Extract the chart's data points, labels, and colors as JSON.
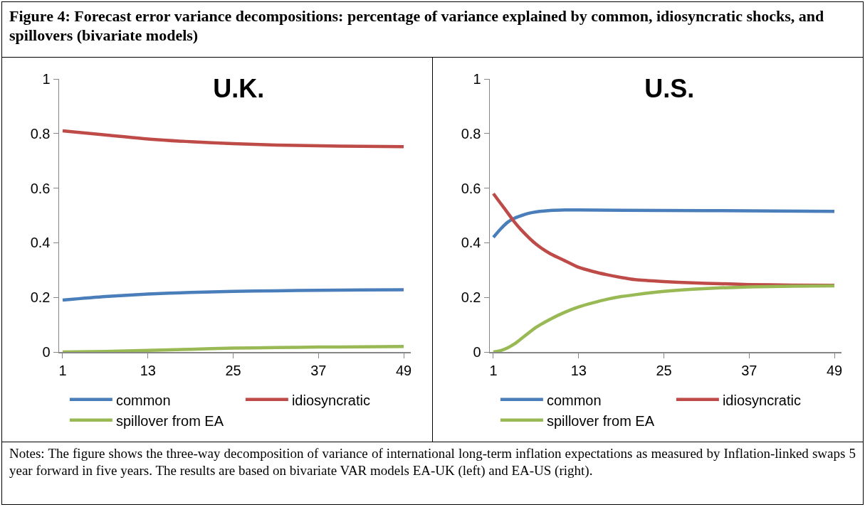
{
  "chart_data": [
    {
      "type": "line",
      "title": "U.K.",
      "annotations": [
        "Figure 4: Forecast error variance decompositions: percentage of variance explained by common, idiosyncratic shocks, and spillovers (bivariate models)"
      ],
      "xlim": [
        0.5,
        50
      ],
      "xticks": [
        1,
        13,
        25,
        37,
        49
      ],
      "ylim": [
        0,
        1
      ],
      "yticks": [
        0,
        0.2,
        0.4,
        0.6,
        0.8,
        1
      ],
      "grid": false,
      "legend": "bottom",
      "series": [
        {
          "name": "common",
          "color": "#4a7ebb",
          "x": [
            1,
            7,
            13,
            19,
            25,
            31,
            37,
            43,
            49
          ],
          "values": [
            0.19,
            0.203,
            0.212,
            0.218,
            0.222,
            0.224,
            0.226,
            0.227,
            0.228
          ]
        },
        {
          "name": "idiosyncratic",
          "color": "#be4b48",
          "x": [
            1,
            7,
            13,
            19,
            25,
            31,
            37,
            43,
            49
          ],
          "values": [
            0.81,
            0.795,
            0.78,
            0.77,
            0.763,
            0.758,
            0.755,
            0.753,
            0.752
          ]
        },
        {
          "name": "spillover from EA",
          "color": "#98b954",
          "x": [
            1,
            7,
            13,
            19,
            25,
            31,
            37,
            43,
            49
          ],
          "values": [
            0,
            0.002,
            0.006,
            0.01,
            0.014,
            0.016,
            0.018,
            0.019,
            0.02
          ]
        }
      ]
    },
    {
      "type": "line",
      "title": "U.S.",
      "annotations": [
        "Notes: The figure shows the three-way decomposition of variance of international long-term inflation expectations as measured by Inflation-linked swaps 5 year forward in five years. The results are based on bivariate VAR models EA-UK (left) and EA-US (right)."
      ],
      "xlim": [
        0.5,
        50
      ],
      "xticks": [
        1,
        13,
        25,
        37,
        49
      ],
      "ylim": [
        0,
        1
      ],
      "yticks": [
        0,
        0.2,
        0.4,
        0.6,
        0.8,
        1
      ],
      "grid": false,
      "legend": "bottom",
      "series": [
        {
          "name": "common",
          "color": "#4a7ebb",
          "x": [
            1,
            2,
            3,
            4,
            5,
            6,
            7,
            9,
            11,
            13,
            25,
            37,
            49
          ],
          "values": [
            0.42,
            0.45,
            0.475,
            0.49,
            0.5,
            0.508,
            0.513,
            0.518,
            0.52,
            0.52,
            0.518,
            0.517,
            0.515
          ]
        },
        {
          "name": "idiosyncratic",
          "color": "#be4b48",
          "x": [
            1,
            2,
            3,
            4,
            5,
            7,
            9,
            11,
            13,
            15,
            17,
            19,
            21,
            25,
            29,
            33,
            37,
            43,
            49
          ],
          "values": [
            0.58,
            0.545,
            0.51,
            0.475,
            0.445,
            0.395,
            0.36,
            0.335,
            0.31,
            0.295,
            0.283,
            0.273,
            0.265,
            0.258,
            0.253,
            0.25,
            0.247,
            0.245,
            0.244
          ]
        },
        {
          "name": "spillover from EA",
          "color": "#98b954",
          "x": [
            1,
            2,
            3,
            4,
            5,
            7,
            9,
            11,
            13,
            15,
            17,
            19,
            21,
            25,
            29,
            33,
            37,
            43,
            49
          ],
          "values": [
            0,
            0.005,
            0.015,
            0.03,
            0.05,
            0.09,
            0.12,
            0.145,
            0.165,
            0.18,
            0.193,
            0.203,
            0.21,
            0.222,
            0.23,
            0.235,
            0.238,
            0.241,
            0.242
          ]
        }
      ]
    }
  ]
}
